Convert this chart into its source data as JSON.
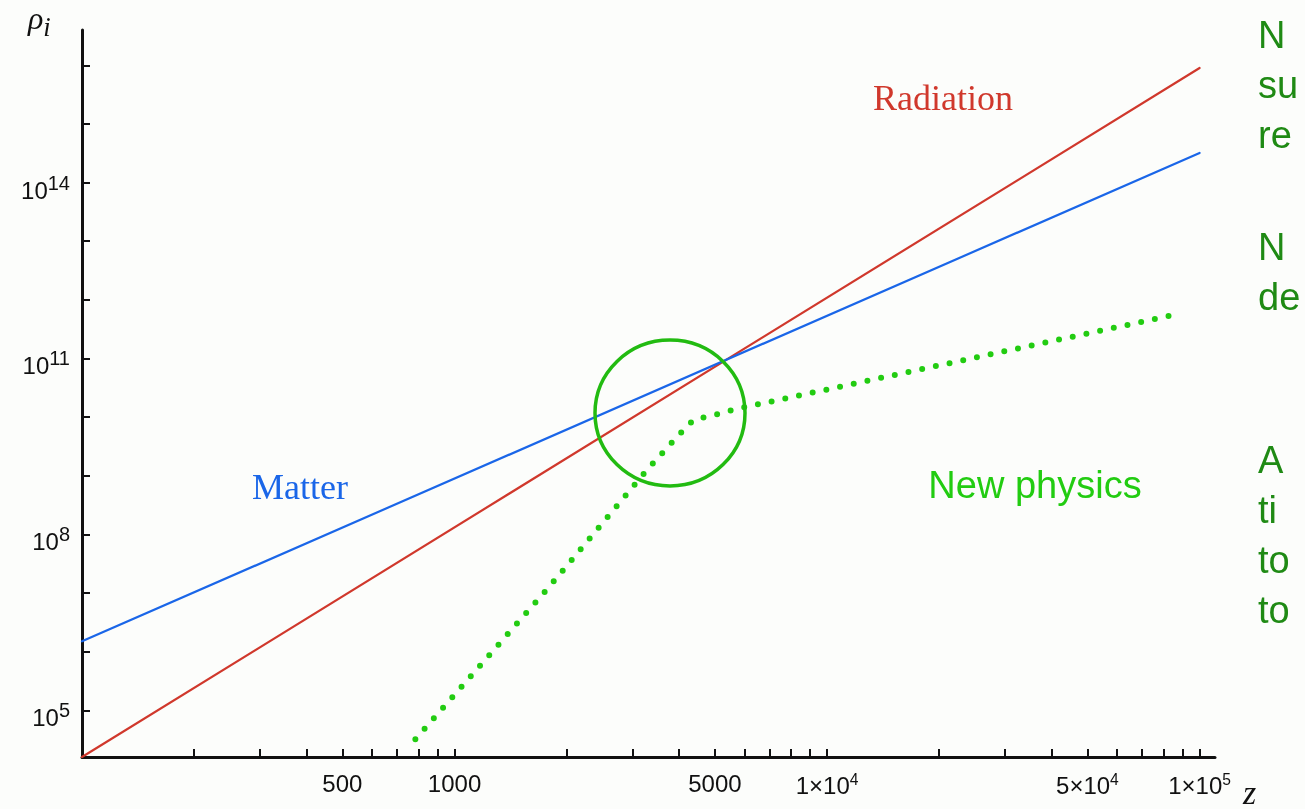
{
  "chart_data": {
    "type": "line",
    "xlabel": "z",
    "ylabel": "ρ$_{i}$",
    "log": "xy",
    "grid": false,
    "legend": false,
    "marker": "none",
    "xlim": [
      100,
      110000
    ],
    "ylim": [
      16000,
      40000000000000000
    ],
    "xticks": [
      {
        "value": 200,
        "label": null
      },
      {
        "value": 300,
        "label": null
      },
      {
        "value": 400,
        "label": null
      },
      500,
      {
        "value": 600,
        "label": null
      },
      {
        "value": 700,
        "label": null
      },
      {
        "value": 800,
        "label": null
      },
      {
        "value": 900,
        "label": null
      },
      1000,
      {
        "value": 2000,
        "label": null
      },
      {
        "value": 3000,
        "label": null
      },
      {
        "value": 4000,
        "label": null
      },
      5000,
      {
        "value": 6000,
        "label": null
      },
      {
        "value": 7000,
        "label": null
      },
      {
        "value": 8000,
        "label": null
      },
      {
        "value": 9000,
        "label": null
      },
      {
        "value": 10000,
        "label": "1×10$^{4}$"
      },
      {
        "value": 20000,
        "label": null
      },
      {
        "value": 30000,
        "label": null
      },
      {
        "value": 40000,
        "label": null
      },
      {
        "value": 50000,
        "label": "5×10$^{4}$"
      },
      {
        "value": 60000,
        "label": null
      },
      {
        "value": 70000,
        "label": null
      },
      {
        "value": 80000,
        "label": null
      },
      {
        "value": 90000,
        "label": null
      },
      {
        "value": 100000,
        "label": "1×10$^{5}$"
      }
    ],
    "yticks": [
      {
        "value": 100000,
        "label": "10$^{5}$"
      },
      {
        "value": 1000000,
        "label": null
      },
      {
        "value": 10000000,
        "label": null
      },
      {
        "value": 100000000,
        "label": "10$^{8}$"
      },
      {
        "value": 1000000000,
        "label": null
      },
      {
        "value": 10000000000,
        "label": null
      },
      {
        "value": 100000000000,
        "label": "10$^{11}$"
      },
      {
        "value": 1000000000000,
        "label": null
      },
      {
        "value": 10000000000000,
        "label": null
      },
      {
        "value": 100000000000000,
        "label": "10$^{14}$"
      },
      {
        "value": 1000000000000000,
        "label": null
      },
      {
        "value": 10000000000000000,
        "label": null
      }
    ],
    "series": [
      {
        "name": "Radiation",
        "color": "#d0382c",
        "line_style": "solid",
        "x": [
          100,
          100000
        ],
        "values": [
          16000,
          9000000000000000
        ]
      },
      {
        "name": "Matter",
        "color": "#1a66e8",
        "line_style": "solid",
        "x": [
          100,
          100000
        ],
        "values": [
          1500000,
          320000000000000
        ]
      },
      {
        "name": "New physics",
        "color": "#22cc11",
        "line_style": "dotted",
        "x": [
          785,
          1780,
          3300,
          3980,
          4390,
          5020,
          5770,
          11300,
          86000
        ],
        "values": [
          32000,
          12000000,
          1300000000,
          4800000000,
          9100000000,
          11000000000,
          14000000000,
          35000000000,
          560000000000
        ]
      }
    ],
    "annotations": [
      "N\nsu\nre",
      "N\nde",
      "A\nti\nto\nto"
    ]
  }
}
